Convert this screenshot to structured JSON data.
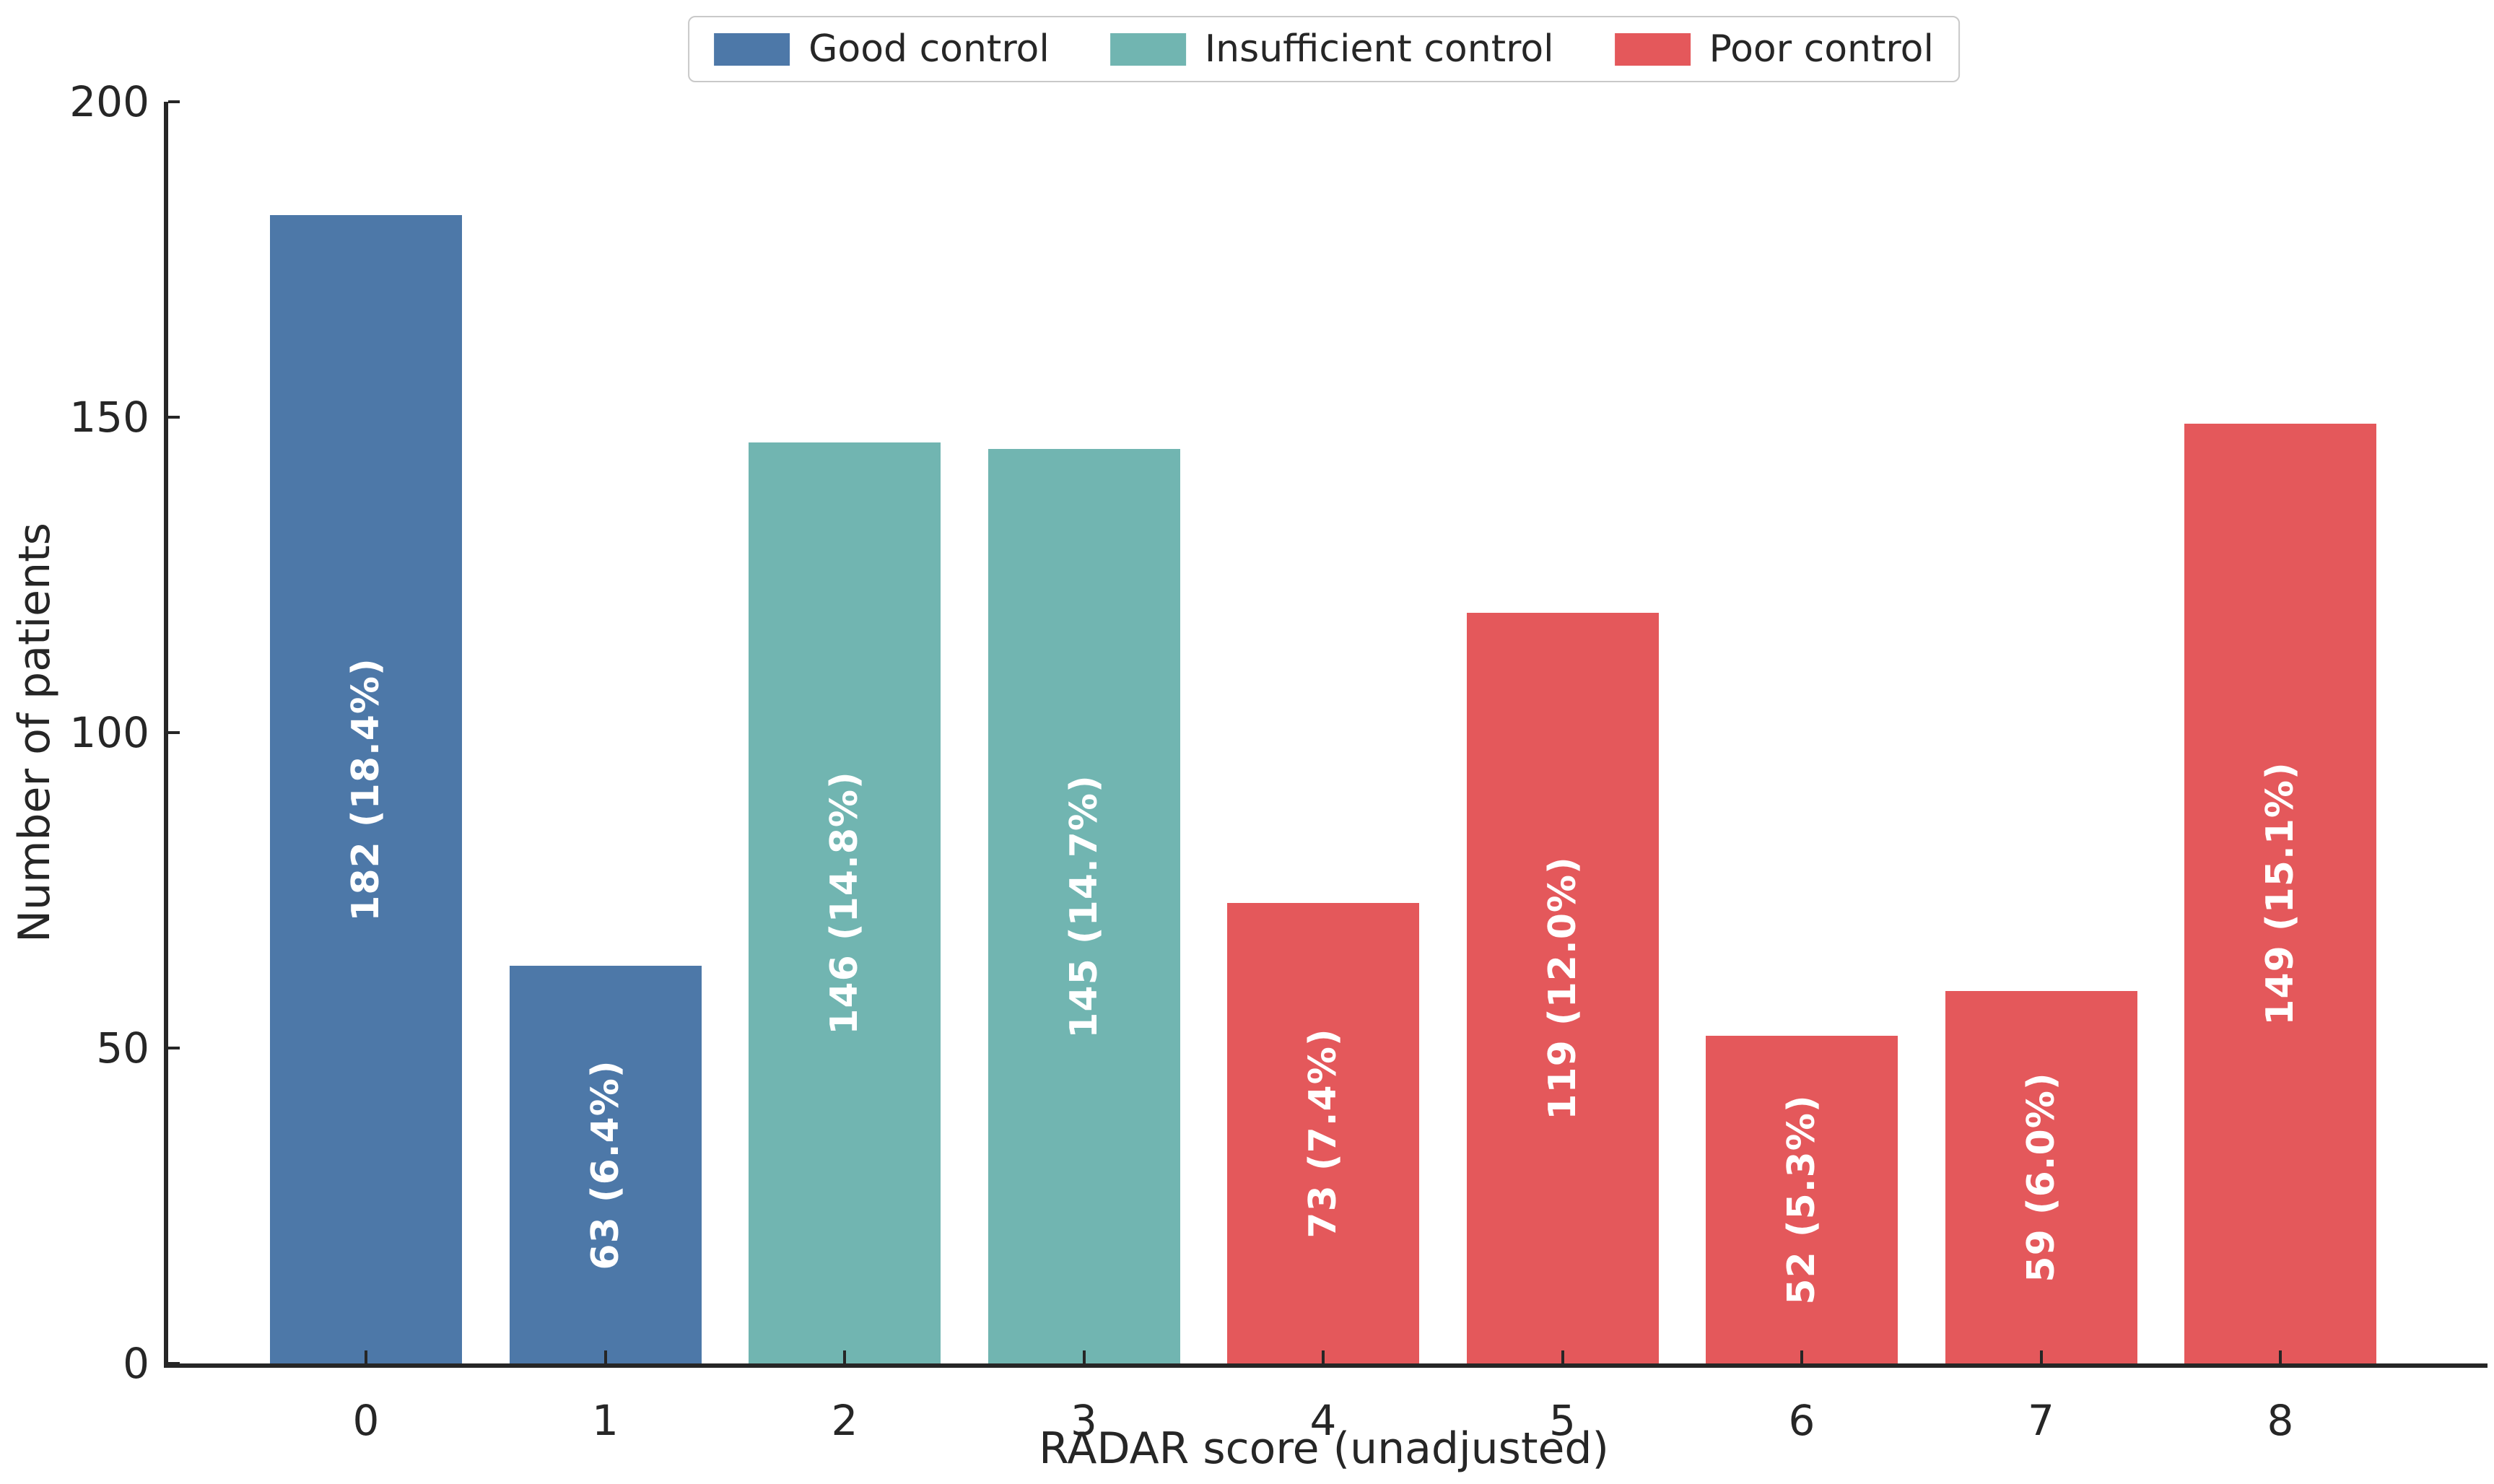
{
  "chart_data": {
    "type": "bar",
    "title": "",
    "xlabel": "RADAR score (unadjusted)",
    "ylabel": "Number of patients",
    "ylim": [
      0,
      200
    ],
    "yticks": [
      0,
      50,
      100,
      150,
      200
    ],
    "grid": false,
    "legend_position": "upper center",
    "legend": [
      {
        "key": "good",
        "label": "Good control",
        "color": "#4D78A8"
      },
      {
        "key": "insufficient",
        "label": "Insufficient control",
        "color": "#71B5B1"
      },
      {
        "key": "poor",
        "label": "Poor control",
        "color": "#E4585B"
      }
    ],
    "bars": [
      {
        "score": "0",
        "value": 182,
        "label": "182 (18.4%)",
        "group": "good"
      },
      {
        "score": "1",
        "value": 63,
        "label": "63 (6.4%)",
        "group": "good"
      },
      {
        "score": "2",
        "value": 146,
        "label": "146 (14.8%)",
        "group": "insufficient"
      },
      {
        "score": "3",
        "value": 145,
        "label": "145 (14.7%)",
        "group": "insufficient"
      },
      {
        "score": "4",
        "value": 73,
        "label": "73 (7.4%)",
        "group": "poor"
      },
      {
        "score": "5",
        "value": 119,
        "label": "119 (12.0%)",
        "group": "poor"
      },
      {
        "score": "6",
        "value": 52,
        "label": "52 (5.3%)",
        "group": "poor"
      },
      {
        "score": "7",
        "value": 59,
        "label": "59 (6.0%)",
        "group": "poor"
      },
      {
        "score": "8",
        "value": 149,
        "label": "149 (15.1%)",
        "group": "poor"
      }
    ],
    "colors": {
      "axis_and_text": "#262626",
      "bar_label_text": "#ffffff",
      "background": "#ffffff",
      "legend_border": "#c9c9c9"
    }
  }
}
